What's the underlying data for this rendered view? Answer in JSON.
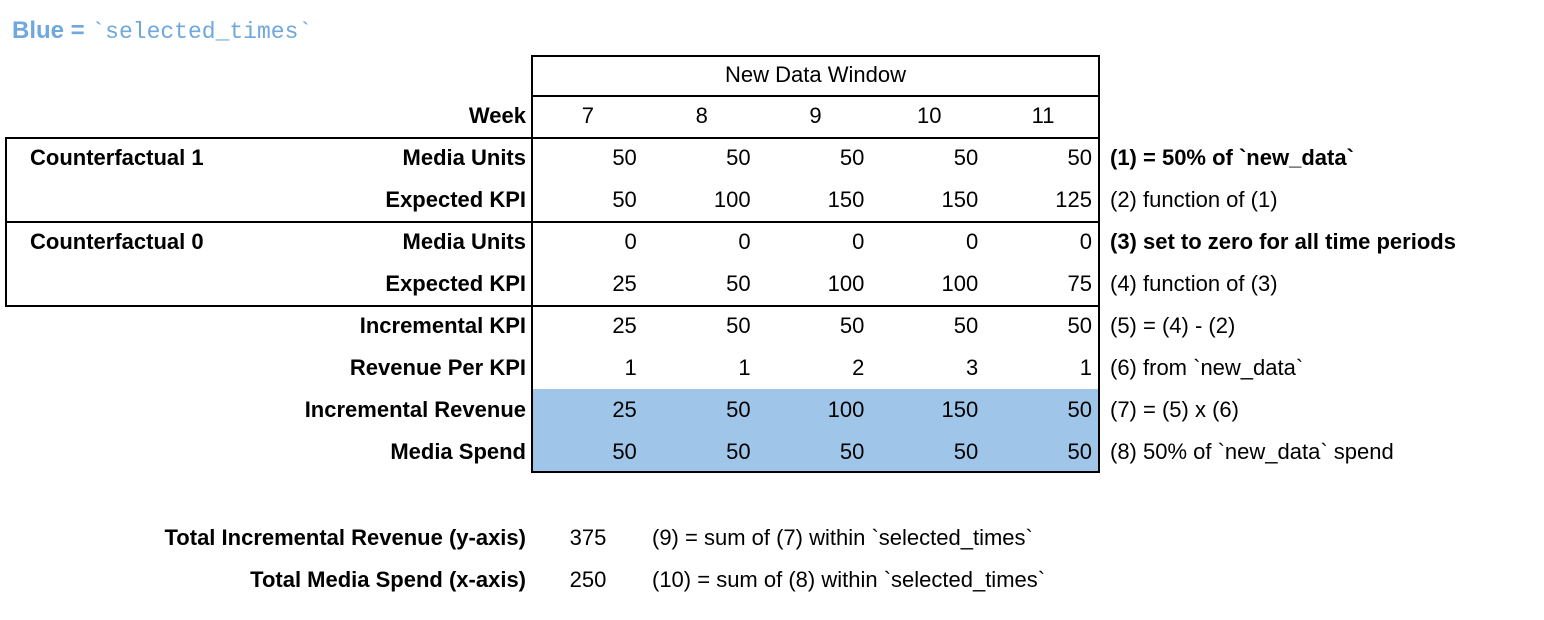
{
  "legend": {
    "label": "Blue = ",
    "code": "`selected_times`"
  },
  "table": {
    "window_header": "New Data Window",
    "week_label": "Week",
    "weeks": [
      "7",
      "8",
      "9",
      "10",
      "11"
    ],
    "groups": [
      {
        "label": "Counterfactual 1"
      },
      {
        "label": "Counterfactual 0"
      }
    ],
    "rows": [
      {
        "label": "Media Units",
        "values": [
          "50",
          "50",
          "50",
          "50",
          "50"
        ],
        "note": "(1) = 50% of `new_data`"
      },
      {
        "label": "Expected KPI",
        "values": [
          "50",
          "100",
          "150",
          "150",
          "125"
        ],
        "note": "(2) function of (1)"
      },
      {
        "label": "Media Units",
        "values": [
          "0",
          "0",
          "0",
          "0",
          "0"
        ],
        "note": "(3) set to zero for all time periods"
      },
      {
        "label": "Expected KPI",
        "values": [
          "25",
          "50",
          "100",
          "100",
          "75"
        ],
        "note": "(4) function of (3)"
      },
      {
        "label": "Incremental KPI",
        "values": [
          "25",
          "50",
          "50",
          "50",
          "50"
        ],
        "note": "(5) = (4) - (2)"
      },
      {
        "label": "Revenue Per KPI",
        "values": [
          "1",
          "1",
          "2",
          "3",
          "1"
        ],
        "note": "(6) from `new_data`"
      },
      {
        "label": "Incremental Revenue",
        "values": [
          "25",
          "50",
          "100",
          "150",
          "50"
        ],
        "note": "(7) = (5) x (6)",
        "highlighted": true
      },
      {
        "label": "Media Spend",
        "values": [
          "50",
          "50",
          "50",
          "50",
          "50"
        ],
        "note": "(8) 50% of `new_data` spend",
        "highlighted": true
      }
    ]
  },
  "totals": [
    {
      "label": "Total Incremental Revenue (y-axis)",
      "value": "375",
      "note": "(9) = sum of (7) within `selected_times`"
    },
    {
      "label": "Total Media Spend (x-axis)",
      "value": "250",
      "note": "(10) = sum of (8) within `selected_times`"
    }
  ],
  "colors": {
    "highlight": "#9fc5e8",
    "legend_blue": "#6fa8dc"
  }
}
